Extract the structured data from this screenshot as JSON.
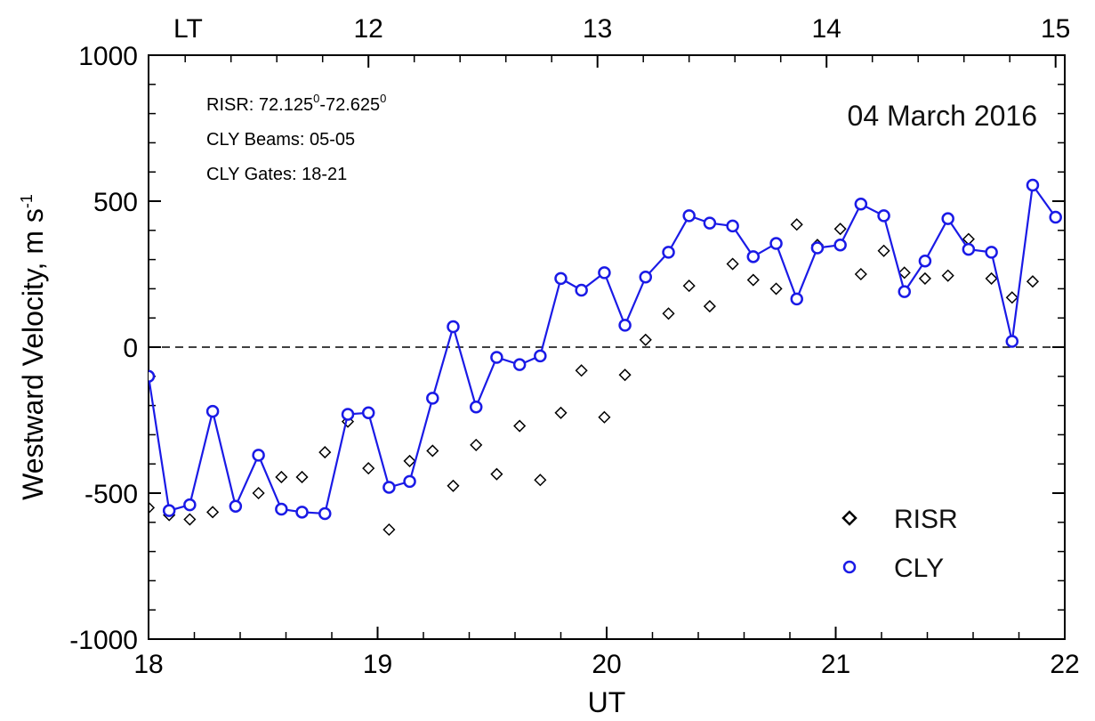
{
  "chart_data": {
    "type": "scatter",
    "date": "04 March 2016",
    "xlabel": "UT",
    "ylabel": "Westward Velocity, m s",
    "ylabel_sup": "-1",
    "xlim": [
      18,
      22
    ],
    "ylim": [
      -1000,
      1000
    ],
    "x_ticks": [
      18,
      19,
      20,
      21,
      22
    ],
    "x_tick_labels": [
      "18",
      "19",
      "20",
      "21",
      "22"
    ],
    "y_ticks": [
      -1000,
      -500,
      0,
      500,
      1000
    ],
    "y_tick_labels": [
      "-1000",
      "-500",
      "0",
      "500",
      "1000"
    ],
    "top_axis": {
      "label": "LT",
      "ticks": [
        18.96,
        19.96,
        20.96,
        21.96
      ],
      "tick_labels": [
        "12",
        "13",
        "14",
        "15"
      ]
    },
    "zero_line": {
      "y": 0,
      "style": "dashed"
    },
    "info_lines": [
      {
        "text": "RISR: 72.125",
        "sup1": "0",
        "mid": "-72.625",
        "sup2": "0"
      },
      {
        "text": "CLY Beams: 05-05"
      },
      {
        "text": "CLY Gates: 18-21"
      }
    ],
    "legend_position": "bottom-right",
    "series": [
      {
        "name": "RISR",
        "marker": "diamond",
        "color": "#000000",
        "connected": false,
        "x": [
          18.0,
          18.09,
          18.18,
          18.28,
          18.48,
          18.58,
          18.67,
          18.77,
          18.87,
          18.96,
          19.05,
          19.14,
          19.24,
          19.33,
          19.43,
          19.52,
          19.62,
          19.71,
          19.8,
          19.89,
          19.99,
          20.08,
          20.17,
          20.27,
          20.36,
          20.45,
          20.55,
          20.64,
          20.74,
          20.83,
          20.92,
          21.02,
          21.11,
          21.21,
          21.3,
          21.39,
          21.49,
          21.58,
          21.68,
          21.77,
          21.86
        ],
        "y": [
          -550,
          -575,
          -590,
          -565,
          -500,
          -445,
          -445,
          -360,
          -255,
          -415,
          -625,
          -390,
          -355,
          -475,
          -335,
          -435,
          -270,
          -455,
          -225,
          -80,
          -240,
          -95,
          25,
          115,
          210,
          140,
          285,
          230,
          200,
          420,
          350,
          405,
          250,
          330,
          255,
          235,
          245,
          370,
          235,
          170,
          225
        ]
      },
      {
        "name": "CLY",
        "marker": "circle",
        "color": "#1a1ae6",
        "connected": true,
        "x": [
          18.0,
          18.09,
          18.18,
          18.28,
          18.38,
          18.48,
          18.58,
          18.67,
          18.77,
          18.87,
          18.96,
          19.05,
          19.14,
          19.24,
          19.33,
          19.43,
          19.52,
          19.62,
          19.71,
          19.8,
          19.89,
          19.99,
          20.08,
          20.17,
          20.27,
          20.36,
          20.45,
          20.55,
          20.64,
          20.74,
          20.83,
          20.92,
          21.02,
          21.11,
          21.21,
          21.3,
          21.39,
          21.49,
          21.58,
          21.68,
          21.77,
          21.86,
          21.96
        ],
        "y": [
          -100,
          -560,
          -540,
          -220,
          -545,
          -370,
          -555,
          -565,
          -570,
          -230,
          -225,
          -480,
          -460,
          -175,
          70,
          -205,
          -35,
          -60,
          -30,
          235,
          195,
          255,
          75,
          240,
          325,
          450,
          425,
          415,
          310,
          355,
          165,
          340,
          350,
          490,
          450,
          190,
          295,
          440,
          335,
          325,
          20,
          555,
          445
        ]
      }
    ]
  }
}
